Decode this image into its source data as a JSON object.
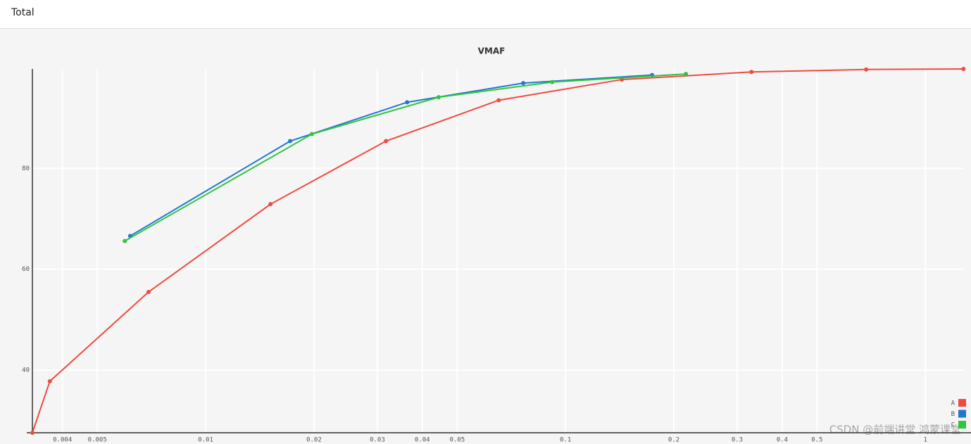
{
  "header": {
    "title": "Total"
  },
  "chart_data": {
    "type": "line",
    "title": "VMAF",
    "xscale": "log",
    "grid": true,
    "legend": "bottom-right",
    "xlim": [
      0.0033,
      1.28
    ],
    "ylim": [
      27.6,
      99.7
    ],
    "xticks": [
      0.004,
      0.005,
      0.01,
      0.02,
      0.03,
      0.04,
      0.05,
      0.1,
      0.2,
      0.3,
      0.4,
      0.5,
      1
    ],
    "yticks": [
      40,
      60,
      80
    ],
    "series": [
      {
        "name": "A",
        "color": "#ef4b40",
        "x": [
          0.0033,
          0.00369,
          0.00694,
          0.01514,
          0.0317,
          0.0652,
          0.1434,
          0.3286,
          0.6847,
          1.276
        ],
        "values": [
          27.6,
          37.8,
          55.5,
          72.9,
          85.4,
          93.5,
          97.6,
          99.1,
          99.6,
          99.7
        ]
      },
      {
        "name": "B",
        "color": "#1f78d1",
        "x": [
          0.00617,
          0.01717,
          0.0363,
          0.0763,
          0.174
        ],
        "values": [
          66.6,
          85.4,
          93.1,
          96.9,
          98.5
        ]
      },
      {
        "name": "C",
        "color": "#2fc53e",
        "x": [
          0.00596,
          0.01974,
          0.0444,
          0.0918,
          0.2161
        ],
        "values": [
          65.6,
          86.8,
          94.1,
          97.1,
          98.7
        ]
      }
    ]
  },
  "watermark": "CSDN @前端讲堂 鸿蒙课堂"
}
